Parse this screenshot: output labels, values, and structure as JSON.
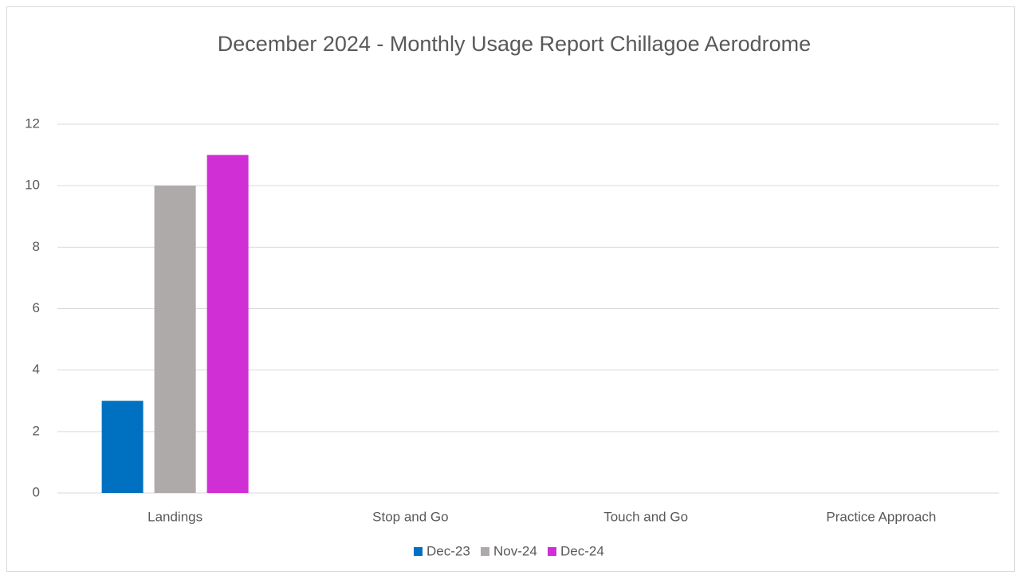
{
  "chart_data": {
    "type": "bar",
    "title": "December 2024 - Monthly Usage Report Chillagoe Aerodrome",
    "categories": [
      "Landings",
      "Stop and Go",
      "Touch and Go",
      "Practice Approach"
    ],
    "series": [
      {
        "name": "Dec-23",
        "color": "#0070c0",
        "values": [
          3,
          0,
          0,
          0
        ]
      },
      {
        "name": "Nov-24",
        "color": "#aeaaaa",
        "values": [
          10,
          0,
          0,
          0
        ]
      },
      {
        "name": "Dec-24",
        "color": "#d12fd6",
        "values": [
          11,
          0,
          0,
          0
        ]
      }
    ],
    "ylim": [
      0,
      12
    ],
    "yticks": [
      0,
      2,
      4,
      6,
      8,
      10,
      12
    ],
    "grid": true,
    "legend": "bottom"
  }
}
